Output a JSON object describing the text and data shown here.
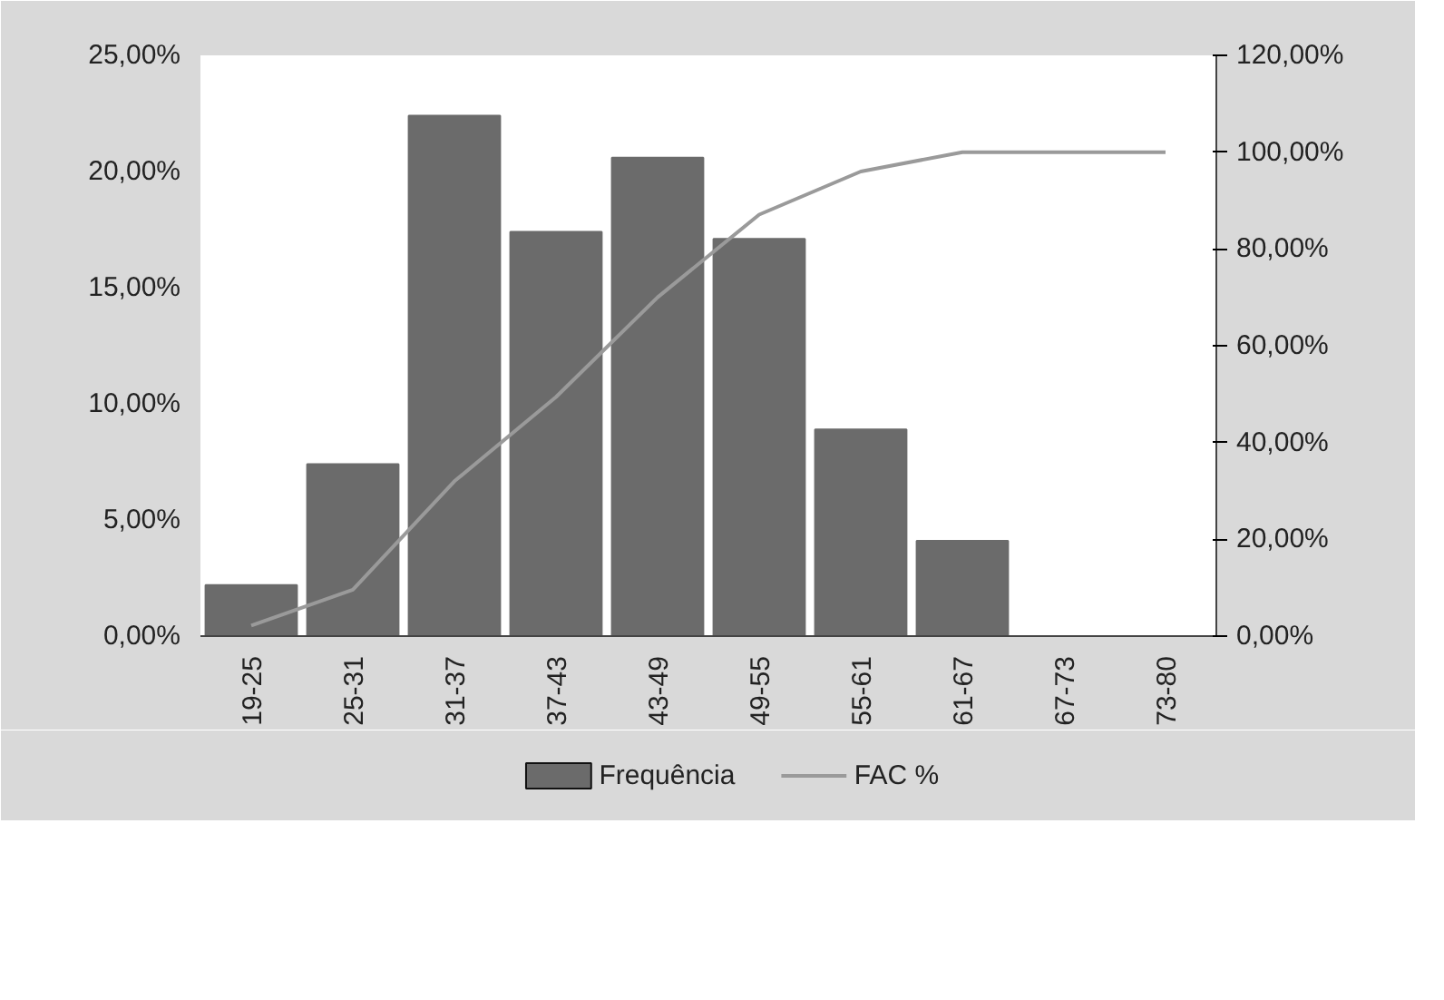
{
  "chart_data": {
    "type": "bar",
    "categories": [
      "19-25",
      "25-31",
      "31-37",
      "37-43",
      "43-49",
      "49-55",
      "55-61",
      "61-67",
      "67-73",
      "73-80"
    ],
    "series": [
      {
        "name": "Frequência",
        "color": "#6b6b6b",
        "values": [
          2.2,
          7.4,
          22.4,
          17.4,
          20.6,
          17.1,
          8.9,
          4.1,
          0,
          0
        ]
      },
      {
        "name": "FAC %",
        "type": "line",
        "axis": "y2",
        "color": "#9a9a9a",
        "values": [
          2.2,
          9.6,
          32,
          49.4,
          70,
          87.1,
          96,
          100,
          100,
          100
        ]
      }
    ],
    "ylim": [
      0,
      25
    ],
    "yticks": [
      {
        "value": 0,
        "label": "0,00%"
      },
      {
        "value": 5,
        "label": "5,00%"
      },
      {
        "value": 10,
        "label": "10,00%"
      },
      {
        "value": 15,
        "label": "15,00%"
      },
      {
        "value": 20,
        "label": "20,00%"
      },
      {
        "value": 25,
        "label": "25,00%"
      }
    ],
    "y2lim": [
      0,
      120
    ],
    "y2ticks": [
      {
        "value": 0,
        "label": "0,00%"
      },
      {
        "value": 20,
        "label": "20,00%"
      },
      {
        "value": 40,
        "label": "40,00%"
      },
      {
        "value": 60,
        "label": "60,00%"
      },
      {
        "value": 80,
        "label": "80,00%"
      },
      {
        "value": 100,
        "label": "100,00%"
      },
      {
        "value": 120,
        "label": "120,00%"
      }
    ],
    "grid": false,
    "legend": "bottom",
    "marker": "none"
  }
}
